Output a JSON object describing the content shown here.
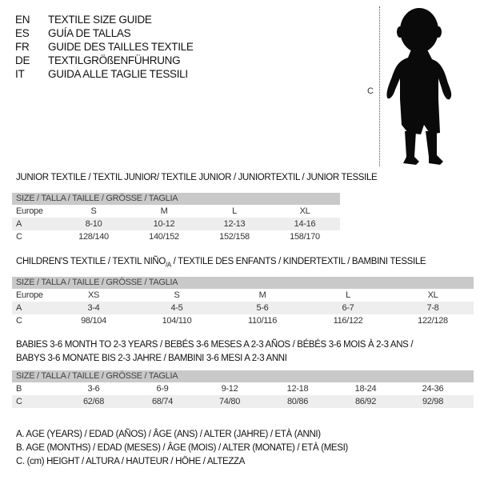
{
  "header": {
    "languages": [
      {
        "code": "EN",
        "text": "TEXTILE SIZE GUIDE"
      },
      {
        "code": "ES",
        "text": "GUÍA DE TALLAS"
      },
      {
        "code": "FR",
        "text": "GUIDE DES TAILLES TEXTILE"
      },
      {
        "code": "DE",
        "text": "TEXTILGRÖßENFÜHRUNG"
      },
      {
        "code": "IT",
        "text": "GUIDA ALLE TAGLIE TESSILI"
      }
    ]
  },
  "figure": {
    "measure_label": "C",
    "icon": "child-silhouette"
  },
  "size_header": "SIZE / TALLA / TAILLE / GRÖSSE / TAGLIA",
  "junior": {
    "title": "JUNIOR TEXTILE / TEXTIL JUNIOR/ TEXTILE JUNIOR / JUNIORTEXTIL / JUNIOR TESSILE",
    "rows": [
      {
        "label": "Europe",
        "values": [
          "S",
          "M",
          "L",
          "XL"
        ]
      },
      {
        "label": "A",
        "values": [
          "8-10",
          "10-12",
          "12-13",
          "14-16"
        ]
      },
      {
        "label": "C",
        "values": [
          "128/140",
          "140/152",
          "152/158",
          "158/170"
        ]
      }
    ]
  },
  "children": {
    "title_part1": "CHILDREN'S TEXTILE / TEXTIL NIÑO",
    "title_sub": "/A",
    "title_part2": " / TEXTILE DES ENFANTS / KINDERTEXTIL / BAMBINI TESSILE",
    "rows": [
      {
        "label": "Europe",
        "values": [
          "XS",
          "S",
          "M",
          "L",
          "XL"
        ]
      },
      {
        "label": "A",
        "values": [
          "3-4",
          "4-5",
          "5-6",
          "6-7",
          "7-8"
        ]
      },
      {
        "label": "C",
        "values": [
          "98/104",
          "104/110",
          "110/116",
          "116/122",
          "122/128"
        ]
      }
    ]
  },
  "babies": {
    "title_line1": "BABIES 3-6 MONTH TO 2-3 YEARS / BEBÉS 3-6 MESES A 2-3 AÑOS / BÉBÉS 3-6 MOIS À 2-3 ANS /",
    "title_line2": "BABYS 3-6 MONATE BIS 2-3 JAHRE / BAMBINI 3-6 MESI A 2-3 ANNI",
    "rows": [
      {
        "label": "B",
        "values": [
          "3-6",
          "6-9",
          "9-12",
          "12-18",
          "18-24",
          "24-36"
        ]
      },
      {
        "label": "C",
        "values": [
          "62/68",
          "68/74",
          "74/80",
          "80/86",
          "86/92",
          "92/98"
        ]
      }
    ]
  },
  "legend": [
    "A. AGE (YEARS) / EDAD (AÑOS) / ÂGE (ANS) / ALTER (JAHRE) / ETÀ (ANNI)",
    "B. AGE (MONTHS) / EDAD (MESES) / ÂGE (MOIS) / ALTER (MONATE) / ETÀ (MESI)",
    "C. (cm) HEIGHT / ALTURA / HAUTEUR / HÖHE / ALTEZZA"
  ]
}
